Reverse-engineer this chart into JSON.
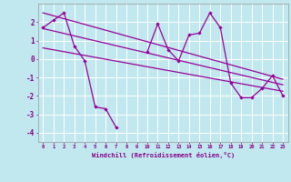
{
  "xlabel": "Windchill (Refroidissement éolien,°C)",
  "x": [
    0,
    1,
    2,
    3,
    4,
    5,
    6,
    7,
    8,
    9,
    10,
    11,
    12,
    13,
    14,
    15,
    16,
    17,
    18,
    19,
    20,
    21,
    22,
    23
  ],
  "y_main": [
    1.7,
    2.1,
    2.5,
    0.7,
    -0.1,
    -2.6,
    -2.7,
    -3.7,
    null,
    null,
    0.4,
    1.9,
    0.5,
    -0.1,
    1.3,
    1.4,
    2.5,
    1.7,
    -1.3,
    -2.1,
    -2.1,
    -1.6,
    -0.9,
    -2.0
  ],
  "trend1_x": [
    0,
    23
  ],
  "trend1_y": [
    1.65,
    -1.4
  ],
  "trend2_x": [
    0,
    23
  ],
  "trend2_y": [
    2.5,
    -1.1
  ],
  "trend3_x": [
    0,
    23
  ],
  "trend3_y": [
    0.6,
    -1.75
  ],
  "ylim": [
    -4.5,
    3.0
  ],
  "xlim": [
    -0.5,
    23.5
  ],
  "line_color": "#990099",
  "bg_color": "#c0e8ee",
  "grid_color": "#ffffff",
  "tick_label_color": "#880088",
  "axis_label_color": "#880088",
  "yticks": [
    -4,
    -3,
    -2,
    -1,
    0,
    1,
    2
  ],
  "xticks": [
    0,
    1,
    2,
    3,
    4,
    5,
    6,
    7,
    8,
    9,
    10,
    11,
    12,
    13,
    14,
    15,
    16,
    17,
    18,
    19,
    20,
    21,
    22,
    23
  ]
}
